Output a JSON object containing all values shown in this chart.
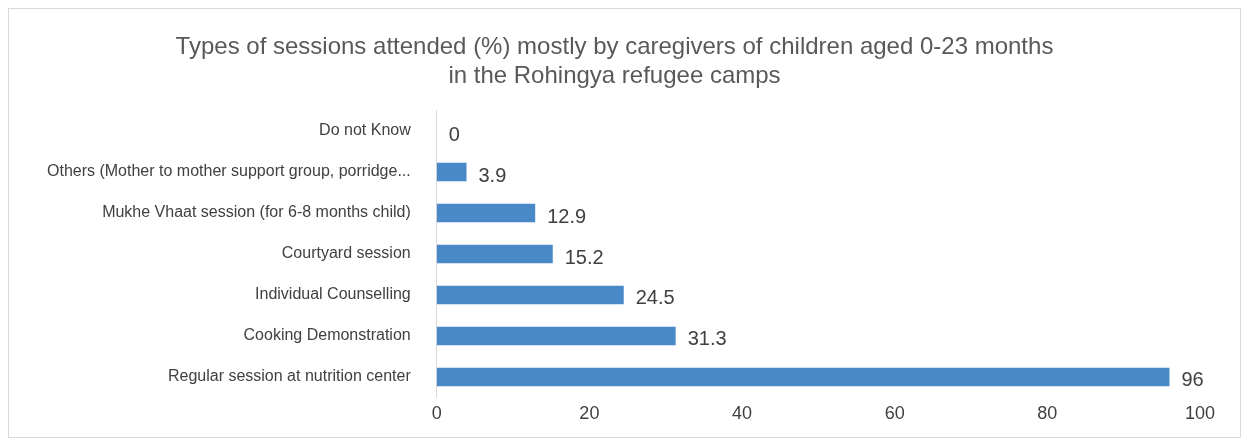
{
  "chart_data": {
    "type": "bar",
    "orientation": "horizontal",
    "title": "Types of sessions attended (%) mostly by caregivers of children aged 0-23 months\nin the Rohingya refugee camps",
    "categories": [
      "Do not Know",
      "Others (Mother to mother support group, porridge...",
      "Mukhe Vhaat session (for 6-8 months child)",
      "Courtyard session",
      "Individual Counselling",
      "Cooking Demonstration",
      "Regular session at nutrition center"
    ],
    "values": [
      0,
      3.9,
      12.9,
      15.2,
      24.5,
      31.3,
      96
    ],
    "color": "#4a89c8",
    "xlim": [
      0,
      100
    ],
    "xticks": [
      0,
      20,
      40,
      60,
      80,
      100
    ],
    "grid": false,
    "legend": false,
    "data_labels": true
  }
}
